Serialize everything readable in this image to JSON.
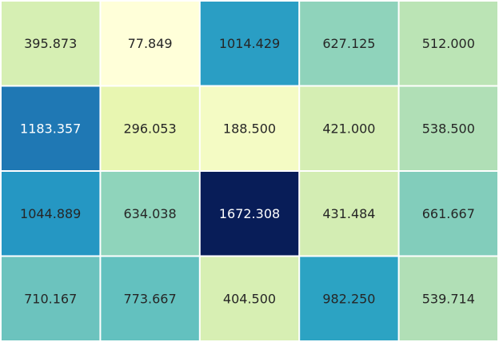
{
  "chart_data": {
    "type": "heatmap",
    "title": "",
    "xlabel": "",
    "ylabel": "",
    "colormap": "YlGnBu",
    "vmin": 77.849,
    "vmax": 1672.308,
    "grid": false,
    "rows": 4,
    "cols": 5,
    "values": [
      [
        395.873,
        77.849,
        1014.429,
        627.125,
        512.0
      ],
      [
        1183.357,
        296.053,
        188.5,
        421.0,
        538.5
      ],
      [
        1044.889,
        634.038,
        1672.308,
        431.484,
        661.667
      ],
      [
        710.167,
        773.667,
        404.5,
        982.25,
        539.714
      ]
    ],
    "labels": [
      [
        "395.873",
        "77.849",
        "1014.429",
        "627.125",
        "512.000"
      ],
      [
        "1183.357",
        "296.053",
        "188.500",
        "421.000",
        "538.500"
      ],
      [
        "1044.889",
        "634.038",
        "1672.308",
        "431.484",
        "661.667"
      ],
      [
        "710.167",
        "773.667",
        "404.500",
        "982.250",
        "539.714"
      ]
    ],
    "cell_colors": [
      [
        "#d6efb3",
        "#ffffd9",
        "#2a9ec4",
        "#8fd3bb",
        "#bbe4b5"
      ],
      [
        "#1f78b4",
        "#e8f6b1",
        "#f4fbc4",
        "#d5eeb3",
        "#b0dfb6"
      ],
      [
        "#2597c3",
        "#8fd4bb",
        "#081d58",
        "#d3edb3",
        "#82cdbb"
      ],
      [
        "#6cc3be",
        "#63c1bf",
        "#d7efb3",
        "#2ca3c3",
        "#b1dfb6"
      ]
    ],
    "text_light": "#ffffff",
    "text_dark": "#262626"
  }
}
